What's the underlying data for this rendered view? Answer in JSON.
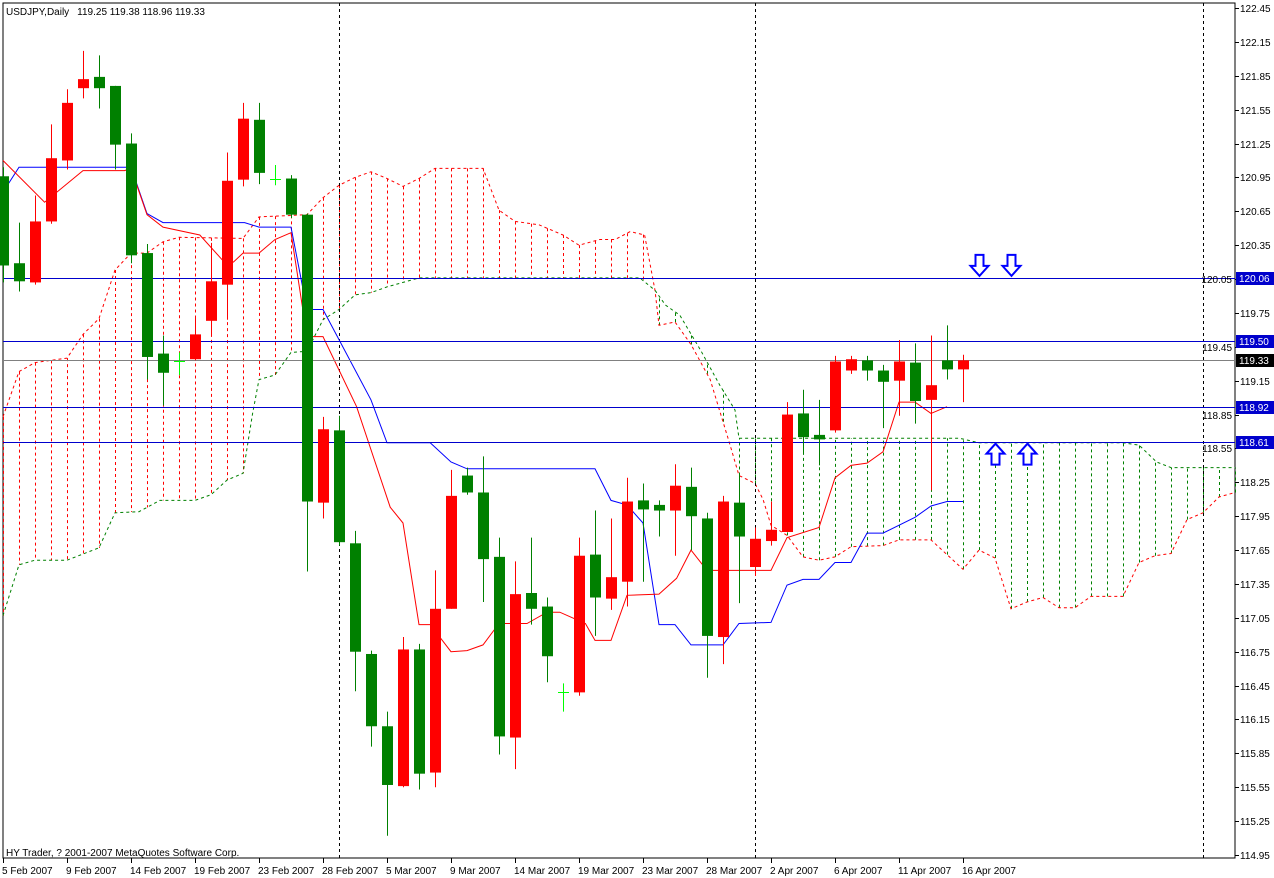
{
  "header": {
    "symbol_period": "USDJPY,Daily",
    "ohlc_readout": "119.25 119.38 118.96 119.33"
  },
  "footer": {
    "copyright": "HY Trader, ? 2001-2007 MetaQuotes Software Corp."
  },
  "colors": {
    "bull_candle": "#FF0000",
    "bear_candle": "#008000",
    "doji": "#00FF00",
    "tenkan": "#FF0000",
    "kijun": "#0000FF",
    "senkou_a": "#FF0000",
    "senkou_b": "#008000",
    "level_line": "#0000CC",
    "level_label_bg": "#0000CC",
    "bid_line": "#808080",
    "bid_label_bg": "#000000",
    "separator": "#000000",
    "arrow": "#0000FF"
  },
  "chart_data": {
    "type": "candlestick",
    "title": "USDJPY,Daily",
    "ylim": [
      114.95,
      122.45
    ],
    "y_ticks": [
      "122.45",
      "122.15",
      "121.85",
      "121.55",
      "121.25",
      "120.95",
      "120.65",
      "120.35",
      "120.05",
      "119.75",
      "119.45",
      "119.15",
      "118.85",
      "118.55",
      "118.25",
      "117.95",
      "117.65",
      "117.35",
      "117.05",
      "116.75",
      "116.45",
      "116.15",
      "115.85",
      "115.55",
      "115.25",
      "114.95"
    ],
    "x_tick_labels": [
      {
        "bar": 0,
        "label": "5 Feb 2007"
      },
      {
        "bar": 4,
        "label": "9 Feb 2007"
      },
      {
        "bar": 8,
        "label": "14 Feb 2007"
      },
      {
        "bar": 12,
        "label": "19 Feb 2007"
      },
      {
        "bar": 16,
        "label": "23 Feb 2007"
      },
      {
        "bar": 20,
        "label": "28 Feb 2007"
      },
      {
        "bar": 24,
        "label": "5 Mar 2007"
      },
      {
        "bar": 28,
        "label": "9 Mar 2007"
      },
      {
        "bar": 32,
        "label": "14 Mar 2007"
      },
      {
        "bar": 36,
        "label": "19 Mar 2007"
      },
      {
        "bar": 40,
        "label": "23 Mar 2007"
      },
      {
        "bar": 44,
        "label": "28 Mar 2007"
      },
      {
        "bar": 48,
        "label": "2 Apr 2007"
      },
      {
        "bar": 52,
        "label": "6 Apr 2007"
      },
      {
        "bar": 56,
        "label": "11 Apr 2007"
      },
      {
        "bar": 60,
        "label": "16 Apr 2007"
      }
    ],
    "candles_ohlc": [
      [
        120.96,
        121.04,
        120.02,
        120.17
      ],
      [
        120.19,
        120.55,
        119.94,
        120.03
      ],
      [
        120.02,
        120.79,
        120.0,
        120.56
      ],
      [
        120.56,
        121.42,
        120.54,
        121.12
      ],
      [
        121.1,
        121.73,
        121.02,
        121.61
      ],
      [
        121.74,
        122.07,
        121.65,
        121.82
      ],
      [
        121.84,
        122.03,
        121.56,
        121.74
      ],
      [
        121.76,
        121.76,
        121.02,
        121.24
      ],
      [
        121.25,
        121.34,
        120.19,
        120.26
      ],
      [
        120.28,
        120.36,
        119.16,
        119.36
      ],
      [
        119.39,
        119.55,
        118.93,
        119.22
      ],
      [
        119.32,
        119.4,
        119.2,
        119.32
      ],
      [
        119.34,
        119.71,
        119.33,
        119.56
      ],
      [
        119.68,
        120.37,
        119.54,
        120.03
      ],
      [
        120.0,
        121.17,
        119.69,
        120.92
      ],
      [
        120.93,
        121.61,
        120.87,
        121.47
      ],
      [
        121.46,
        121.61,
        120.89,
        120.99
      ],
      [
        120.94,
        121.06,
        120.88,
        120.94
      ],
      [
        120.94,
        120.97,
        120.59,
        120.62
      ],
      [
        120.62,
        120.63,
        117.46,
        118.08
      ],
      [
        118.07,
        118.83,
        117.93,
        118.72
      ],
      [
        118.71,
        118.84,
        117.69,
        117.72
      ],
      [
        117.71,
        117.82,
        116.4,
        116.75
      ],
      [
        116.73,
        116.76,
        115.91,
        116.09
      ],
      [
        116.09,
        116.22,
        115.12,
        115.57
      ],
      [
        115.56,
        116.88,
        115.55,
        116.77
      ],
      [
        116.77,
        116.82,
        115.53,
        115.67
      ],
      [
        115.68,
        117.47,
        115.55,
        117.13
      ],
      [
        117.13,
        118.36,
        117.13,
        118.13
      ],
      [
        118.31,
        118.38,
        118.14,
        118.16
      ],
      [
        118.16,
        118.48,
        117.19,
        117.57
      ],
      [
        117.59,
        117.76,
        115.84,
        116.0
      ],
      [
        115.99,
        117.55,
        115.71,
        117.26
      ],
      [
        117.27,
        117.76,
        116.99,
        117.13
      ],
      [
        117.15,
        117.23,
        116.48,
        116.71
      ],
      [
        116.39,
        116.47,
        116.22,
        116.39
      ],
      [
        116.39,
        117.76,
        116.36,
        117.6
      ],
      [
        117.61,
        118.0,
        116.89,
        117.23
      ],
      [
        117.22,
        117.93,
        117.12,
        117.41
      ],
      [
        117.37,
        118.29,
        117.15,
        118.08
      ],
      [
        118.09,
        118.24,
        117.37,
        118.01
      ],
      [
        118.05,
        118.09,
        117.77,
        118.0
      ],
      [
        118.0,
        118.41,
        117.6,
        118.22
      ],
      [
        118.21,
        118.38,
        117.65,
        117.95
      ],
      [
        117.93,
        117.98,
        116.52,
        116.89
      ],
      [
        116.88,
        118.13,
        116.64,
        118.08
      ],
      [
        118.07,
        118.31,
        117.18,
        117.77
      ],
      [
        117.5,
        117.85,
        117.42,
        117.75
      ],
      [
        117.73,
        118.08,
        117.69,
        117.83
      ],
      [
        117.81,
        118.96,
        117.81,
        118.85
      ],
      [
        118.86,
        119.07,
        118.5,
        118.65
      ],
      [
        118.67,
        118.98,
        118.4,
        118.63
      ],
      [
        118.71,
        119.37,
        118.69,
        119.32
      ],
      [
        119.24,
        119.37,
        119.21,
        119.34
      ],
      [
        119.33,
        119.37,
        119.15,
        119.24
      ],
      [
        119.24,
        119.29,
        118.73,
        119.14
      ],
      [
        119.15,
        119.51,
        118.84,
        119.32
      ],
      [
        119.31,
        119.48,
        118.77,
        118.97
      ],
      [
        118.98,
        119.55,
        118.18,
        119.11
      ],
      [
        119.33,
        119.64,
        119.16,
        119.25
      ],
      [
        119.25,
        119.38,
        118.96,
        119.33
      ]
    ],
    "tenkan": [
      [
        0,
        121.1
      ],
      [
        2.6,
        120.73
      ],
      [
        5,
        121.01
      ],
      [
        7.6,
        121.01
      ],
      [
        8,
        121.03
      ],
      [
        9,
        120.62
      ],
      [
        10,
        120.51
      ],
      [
        12.3,
        120.44
      ],
      [
        13.7,
        120.22
      ],
      [
        14.4,
        120.2
      ],
      [
        15,
        120.28
      ],
      [
        16,
        120.28
      ],
      [
        17,
        120.4
      ],
      [
        18,
        120.46
      ],
      [
        19,
        119.54
      ],
      [
        20,
        119.54
      ],
      [
        22.1,
        118.92
      ],
      [
        24.2,
        118.03
      ],
      [
        25,
        117.89
      ],
      [
        26,
        116.99
      ],
      [
        26.7,
        116.99
      ],
      [
        28,
        116.75
      ],
      [
        29,
        116.76
      ],
      [
        30,
        116.81
      ],
      [
        31,
        117.0
      ],
      [
        32.75,
        117.0
      ],
      [
        34,
        117.1
      ],
      [
        34.8,
        117.1
      ],
      [
        36.4,
        117.0
      ],
      [
        37,
        116.85
      ],
      [
        38,
        116.85
      ],
      [
        39,
        117.25
      ],
      [
        41,
        117.26
      ],
      [
        42.1,
        117.4
      ],
      [
        43,
        117.65
      ],
      [
        44,
        117.47
      ],
      [
        48,
        117.47
      ],
      [
        49,
        117.76
      ],
      [
        51,
        117.85
      ],
      [
        52,
        118.29
      ],
      [
        53,
        118.4
      ],
      [
        54,
        118.42
      ],
      [
        55,
        118.52
      ],
      [
        56,
        118.96
      ],
      [
        57,
        118.96
      ],
      [
        58,
        118.86
      ],
      [
        59,
        118.92
      ]
    ],
    "kijun": [
      [
        0,
        120.82
      ],
      [
        1,
        121.04
      ],
      [
        8,
        121.04
      ],
      [
        9,
        120.63
      ],
      [
        10,
        120.55
      ],
      [
        15.1,
        120.55
      ],
      [
        16,
        120.51
      ],
      [
        18,
        120.51
      ],
      [
        19,
        119.78
      ],
      [
        20,
        119.78
      ],
      [
        23,
        118.98
      ],
      [
        24,
        118.6
      ],
      [
        26.7,
        118.6
      ],
      [
        28,
        118.43
      ],
      [
        29,
        118.37
      ],
      [
        37,
        118.37
      ],
      [
        38,
        118.09
      ],
      [
        39,
        118.05
      ],
      [
        40,
        117.89
      ],
      [
        41,
        116.99
      ],
      [
        42,
        116.99
      ],
      [
        43,
        116.81
      ],
      [
        45,
        116.81
      ],
      [
        46,
        117.0
      ],
      [
        48,
        117.01
      ],
      [
        49,
        117.34
      ],
      [
        50,
        117.39
      ],
      [
        51,
        117.39
      ],
      [
        52,
        117.54
      ],
      [
        53,
        117.54
      ],
      [
        54,
        117.8
      ],
      [
        55,
        117.8
      ],
      [
        57,
        117.94
      ],
      [
        58,
        118.04
      ],
      [
        59,
        118.08
      ],
      [
        60,
        118.08
      ]
    ],
    "senkou_a": [
      [
        0,
        118.83
      ],
      [
        1,
        119.23
      ],
      [
        2,
        119.31
      ],
      [
        4,
        119.35
      ],
      [
        5,
        119.56
      ],
      [
        6,
        119.7
      ],
      [
        7,
        120.13
      ],
      [
        8,
        120.28
      ],
      [
        9,
        120.28
      ],
      [
        10,
        120.38
      ],
      [
        11,
        120.42
      ],
      [
        15,
        120.41
      ],
      [
        16,
        120.6
      ],
      [
        19,
        120.62
      ],
      [
        20,
        120.77
      ],
      [
        21,
        120.88
      ],
      [
        22,
        120.95
      ],
      [
        23,
        121.0
      ],
      [
        24,
        120.94
      ],
      [
        25,
        120.87
      ],
      [
        26,
        120.94
      ],
      [
        27,
        121.03
      ],
      [
        30,
        121.03
      ],
      [
        31,
        120.66
      ],
      [
        32,
        120.56
      ],
      [
        33.5,
        120.53
      ],
      [
        35,
        120.44
      ],
      [
        36,
        120.35
      ],
      [
        37.3,
        120.4
      ],
      [
        38.25,
        120.4
      ],
      [
        39.2,
        120.47
      ],
      [
        40.1,
        120.44
      ],
      [
        40.75,
        119.95
      ],
      [
        41,
        119.64
      ],
      [
        42,
        119.67
      ],
      [
        43,
        119.47
      ],
      [
        44.2,
        119.16
      ],
      [
        45.4,
        118.6
      ],
      [
        46,
        118.31
      ],
      [
        47,
        118.24
      ],
      [
        47.5,
        118.1
      ],
      [
        48,
        117.87
      ],
      [
        49,
        117.78
      ],
      [
        50,
        117.59
      ],
      [
        51,
        117.56
      ],
      [
        52,
        117.59
      ],
      [
        53,
        117.68
      ],
      [
        55,
        117.69
      ],
      [
        56,
        117.74
      ],
      [
        58,
        117.74
      ],
      [
        59,
        117.61
      ],
      [
        60,
        117.48
      ],
      [
        61,
        117.65
      ],
      [
        62,
        117.58
      ],
      [
        63,
        117.13
      ],
      [
        64,
        117.19
      ],
      [
        65,
        117.23
      ],
      [
        66,
        117.14
      ],
      [
        67,
        117.14
      ],
      [
        68,
        117.24
      ],
      [
        70,
        117.24
      ],
      [
        71,
        117.54
      ],
      [
        72,
        117.6
      ],
      [
        73,
        117.62
      ],
      [
        74,
        117.92
      ],
      [
        75,
        117.98
      ],
      [
        76,
        118.12
      ],
      [
        77,
        118.16
      ]
    ],
    "senkou_b": [
      [
        0,
        117.07
      ],
      [
        1,
        117.52
      ],
      [
        2,
        117.56
      ],
      [
        4,
        117.56
      ],
      [
        6,
        117.67
      ],
      [
        7,
        117.98
      ],
      [
        8.5,
        117.99
      ],
      [
        9.8,
        118.09
      ],
      [
        12,
        118.09
      ],
      [
        13,
        118.14
      ],
      [
        14,
        118.27
      ],
      [
        15,
        118.33
      ],
      [
        15.6,
        118.86
      ],
      [
        16,
        119.16
      ],
      [
        17,
        119.2
      ],
      [
        18,
        119.4
      ],
      [
        19,
        119.41
      ],
      [
        20,
        119.69
      ],
      [
        21,
        119.78
      ],
      [
        22,
        119.91
      ],
      [
        23,
        119.93
      ],
      [
        24,
        119.98
      ],
      [
        25,
        120.02
      ],
      [
        26,
        120.06
      ],
      [
        39.8,
        120.06
      ],
      [
        40.75,
        119.95
      ],
      [
        41.4,
        119.82
      ],
      [
        42.3,
        119.73
      ],
      [
        43.6,
        119.42
      ],
      [
        44.8,
        119.11
      ],
      [
        45.75,
        118.89
      ],
      [
        46,
        118.64
      ],
      [
        59.8,
        118.64
      ],
      [
        61,
        118.6
      ],
      [
        70,
        118.6
      ],
      [
        71,
        118.58
      ],
      [
        72.1,
        118.43
      ],
      [
        73,
        118.38
      ],
      [
        77,
        118.38
      ]
    ],
    "levels": [
      {
        "price": 120.06,
        "label": "120.06"
      },
      {
        "price": 119.5,
        "label": "119.50"
      },
      {
        "price": 118.92,
        "label": "118.92"
      },
      {
        "price": 118.61,
        "label": "118.61"
      }
    ],
    "bid": {
      "price": 119.33,
      "label": "119.33"
    },
    "arrows": [
      {
        "bar": 61,
        "price": 120.06,
        "direction": "down"
      },
      {
        "bar": 63,
        "price": 120.06,
        "direction": "down"
      },
      {
        "bar": 62,
        "price": 118.61,
        "direction": "up"
      },
      {
        "bar": 64,
        "price": 118.61,
        "direction": "up"
      }
    ],
    "period_separators_bar": [
      21,
      47,
      75
    ],
    "grid": false
  }
}
